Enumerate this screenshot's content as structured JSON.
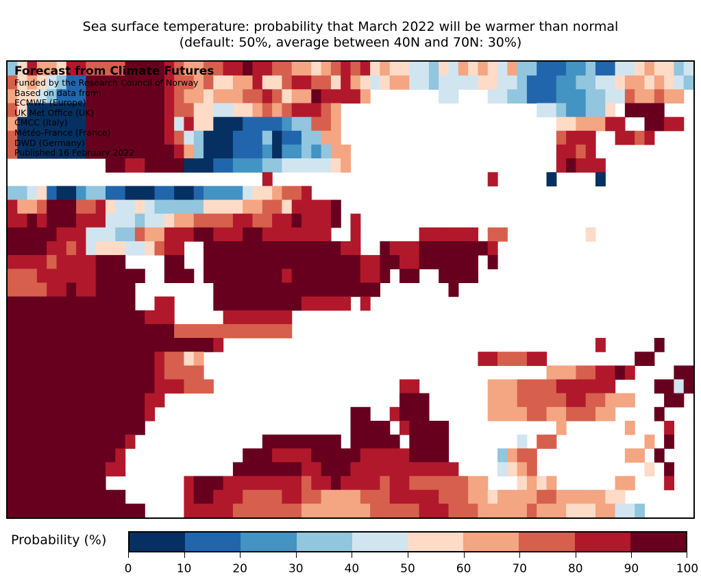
{
  "title": {
    "line1": "Sea surface temperature: probability that March 2022 will be warmer than normal",
    "line2": "(default: 50%, average between 40N and 70N: 30%)"
  },
  "overlay": {
    "heading": "Forecast from Climate Futures",
    "lines": [
      "Funded by the Research Council of Norway",
      "Based on data from:",
      "ECMWF (Europe)",
      "UK Met Office (UK)",
      "CMCC (Italy)",
      "Météo-France (France)",
      "DWD (Germany)",
      "Published 16 February 2022"
    ]
  },
  "colorbar": {
    "label": "Probability (%)",
    "ticks": [
      "0",
      "10",
      "20",
      "30",
      "40",
      "50",
      "60",
      "70",
      "80",
      "90",
      "100"
    ],
    "bins": [
      {
        "range": "0-10",
        "color": "#053061"
      },
      {
        "range": "10-20",
        "color": "#2166ac"
      },
      {
        "range": "20-30",
        "color": "#4393c3"
      },
      {
        "range": "30-40",
        "color": "#92c5de"
      },
      {
        "range": "40-50",
        "color": "#d1e5f0"
      },
      {
        "range": "50-60",
        "color": "#fddbc7"
      },
      {
        "range": "60-70",
        "color": "#f4a582"
      },
      {
        "range": "70-80",
        "color": "#d6604d"
      },
      {
        "range": "80-90",
        "color": "#b2182b"
      },
      {
        "range": "90-100",
        "color": "#67001f"
      }
    ]
  },
  "chart_data": {
    "type": "heatmap",
    "title": "Sea surface temperature: probability that March 2022 will be warmer than normal",
    "subtitle": "(default: 50%, average between 40N and 70N: 30%)",
    "colorbar_label": "Probability (%)",
    "value_range": [
      0,
      100
    ],
    "bin_width": 10,
    "encoding": "Each string is a map row (north to south); each char is a grid cell (west to east). Digit d = probability bin d*10 to d*10+10 %. '.' = land / no data.",
    "grid": [
      "3586658877779999876677889887766567878565544354656546331112231144565534",
      "7565431199999999877675566855788775865456644344445544311122334456656543",
      "6554311199999999876656667787566988886.......44...44331112223344766766",
      "7500000099999999877554455676788876....................44322335.9999",
      "6000000099999999848550001111233776......................5566688..9988",
      "7000000099999999874300011130113366......................7888..8878..",
      "70000000999999999863000111202232366.....................8878.........",
      "..........9988999900011222334444456.....................89888.........",
      "..........................8......................8.....0....0.......",
      "3345100233110001100122224556778.....................................",
      "8667999778544543333355556677588889..................................",
      "8898999888444344566777788778898889.8................................",
      "999998884443376688899888998888888..8......888888.77........5........",
      "999988784555445788..9999999999999988..988899999998..................",
      "888878888999....99..9999999999999999889988999999.9..................",
      "77788888899999..999.9999999989999999889.99..9999....................",
      "7777889889999........99999999999999999.......9......................",
      "9999999999999..88....99999999988888.8..............................",
      "99999999999999888.....8888888........................................",
      "99999999999999999777777777777..........................................",
      "9999999999999999999998......................................8.....9",
      "99999999999999987756............................8877788.........99",
      "99999999999999987777...................................666778898....99",
      "999999999999999888777...................88.......6667777888888....9949",
      "9999999999999988........................999......666777778877666...99",
      "999999999999998....................99..8999......6666776677766....9..",
      "99999999999999.....................9999.89999...........6......6...8",
      "9999999999998.............99999999.99999.9999.......4.77.........6.9",
      "999999999998............999888899999888889999.....3677.........66.9",
      "999999999988...........99999998899988888888888....4567...........5.9",
      "9999999999........8999888888887889888878877777766...5656......66...8",
      "999999999999......899888777788776666777888887776656666776666655.....",
      "99999999999999....88888777777766666667777788877766666766655566443...."
    ]
  }
}
